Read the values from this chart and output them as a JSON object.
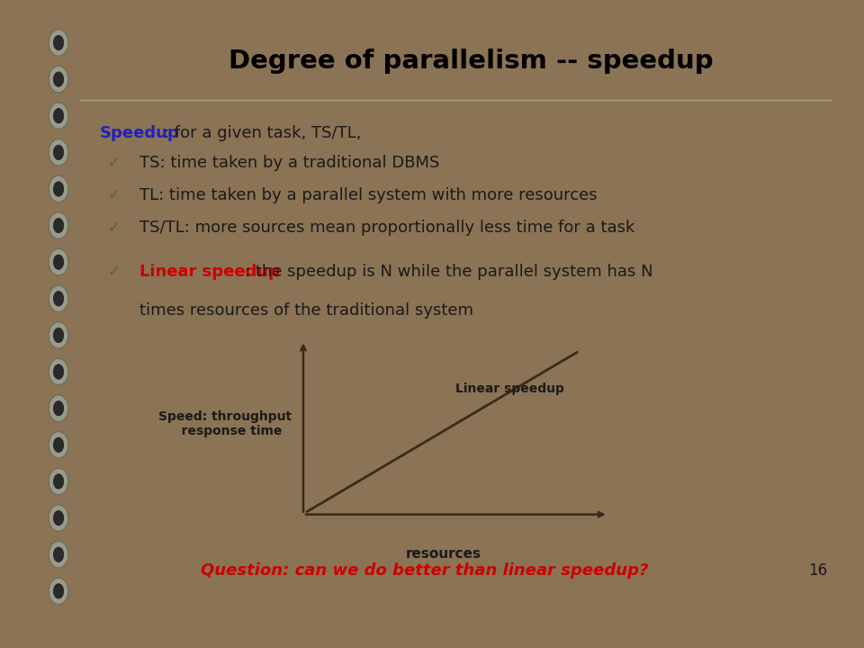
{
  "title": "Degree of parallelism -- speedup",
  "title_fontsize": 21,
  "title_color": "#000000",
  "bg_outer": "#8B7355",
  "bg_slide": "#FAFAE0",
  "bg_footer": "#D4D4E0",
  "separator_color": "#A8A870",
  "bullet_color": "#5C5C3A",
  "text_color": "#1A1A1A",
  "blue_color": "#2222BB",
  "red_color": "#CC0000",
  "line_color": "#3B2A1A",
  "footer_text": "Question: can we do better than linear speedup?",
  "footer_color": "#CC0000",
  "page_num": "16",
  "speedup_label": "Speedup",
  "speedup_text": ": for a given task, TS/TL,",
  "bullet1": "TS: time taken by a traditional DBMS",
  "bullet2": "TL: time taken by a parallel system with more resources",
  "bullet3": "TS/TL: more sources mean proportionally less time for a task",
  "linear_label": "Linear speedup",
  "linear_line1": ": the speedup is N while the parallel system has N",
  "linear_line2": "times resources of the traditional system",
  "ylabel_line1": "Speed: throughput",
  "ylabel_line2": "   response time",
  "xlabel": "resources",
  "graph_annotation": "Linear speedup"
}
